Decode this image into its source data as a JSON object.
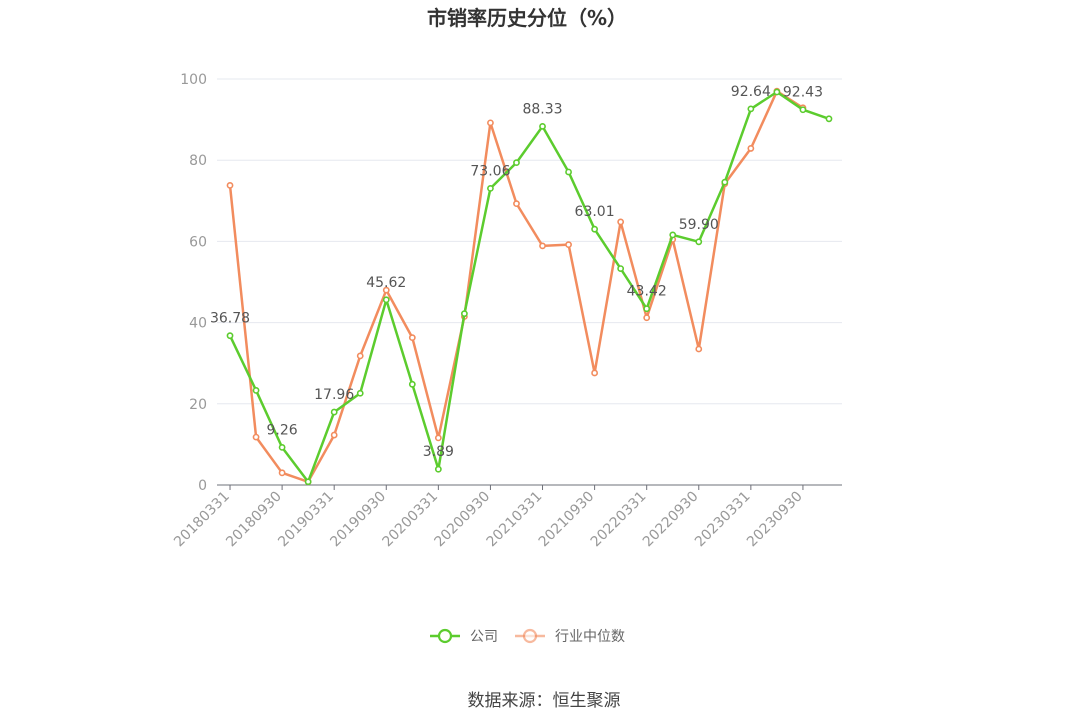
{
  "chart_data": {
    "type": "line",
    "title": "市销率历史分位（%）",
    "source": "数据来源：恒生聚源",
    "ylim": [
      0,
      100
    ],
    "yticks": [
      0,
      20,
      40,
      60,
      80,
      100
    ],
    "x": [
      "20180331",
      "20180630",
      "20180930",
      "20181231",
      "20190331",
      "20190630",
      "20190930",
      "20191231",
      "20200331",
      "20200630",
      "20200930",
      "20201231",
      "20210331",
      "20210630",
      "20210930",
      "20211231",
      "20220331",
      "20220630",
      "20220930",
      "20221231",
      "20230331",
      "20230630",
      "20230930",
      "20231231"
    ],
    "xtick_labels": [
      "20180331",
      "20180930",
      "20190331",
      "20190930",
      "20200331",
      "20200930",
      "20210331",
      "20210930",
      "20220331",
      "20220930",
      "20230331",
      "20230930"
    ],
    "grid": true,
    "legend_position": "bottom-center",
    "series": [
      {
        "name": "公司",
        "color": "#5ccc2e",
        "values": [
          36.78,
          23.3,
          9.26,
          0.8,
          17.96,
          22.6,
          45.62,
          24.8,
          3.89,
          42.2,
          73.06,
          79.4,
          88.33,
          77.1,
          63.01,
          53.3,
          43.42,
          61.6,
          59.9,
          74.6,
          92.64,
          96.8,
          92.43,
          90.2
        ],
        "labels": [
          {
            "index": 0,
            "text": "36.78"
          },
          {
            "index": 2,
            "text": "9.26"
          },
          {
            "index": 4,
            "text": "17.96"
          },
          {
            "index": 6,
            "text": "45.62"
          },
          {
            "index": 8,
            "text": "3.89"
          },
          {
            "index": 10,
            "text": "73.06"
          },
          {
            "index": 12,
            "text": "88.33"
          },
          {
            "index": 14,
            "text": "63.01"
          },
          {
            "index": 16,
            "text": "43.42"
          },
          {
            "index": 18,
            "text": "59.90"
          },
          {
            "index": 20,
            "text": "92.64"
          },
          {
            "index": 22,
            "text": "92.43"
          }
        ]
      },
      {
        "name": "行业中位数",
        "color": "#f28c5e",
        "values": [
          73.8,
          11.8,
          3.0,
          0.8,
          12.3,
          31.8,
          48.0,
          36.3,
          11.6,
          41.5,
          89.2,
          69.3,
          58.9,
          59.2,
          27.6,
          64.8,
          41.2,
          60.5,
          33.5,
          74.2,
          82.9,
          97.0,
          92.9,
          null
        ]
      }
    ]
  }
}
